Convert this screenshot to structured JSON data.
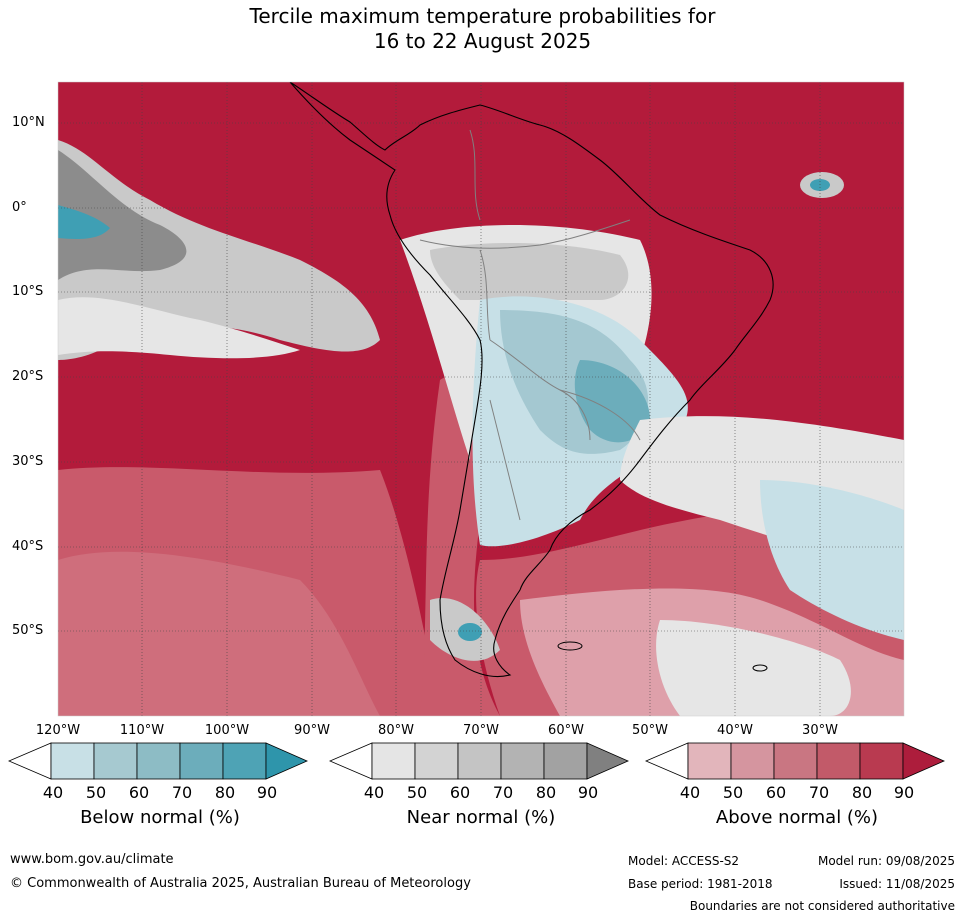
{
  "title": {
    "line1": "Tercile maximum temperature probabilities for",
    "line2": "16 to 22 August 2025"
  },
  "map": {
    "lat_labels": [
      "10°N",
      "0°",
      "10°S",
      "20°S",
      "30°S",
      "40°S",
      "50°S"
    ],
    "lon_labels": [
      "120°W",
      "110°W",
      "100°W",
      "90°W",
      "80°W",
      "70°W",
      "60°W",
      "50°W",
      "40°W",
      "30°W"
    ],
    "colors": {
      "above_high": "#b31b3b",
      "above_mid": "#c95a6b",
      "above_low": "#dea0aa",
      "near_low": "#e6e6e6",
      "near_mid": "#c9c9c9",
      "near_high": "#8c8c8c",
      "below_low": "#c7e0e7",
      "below_mid": "#a4c8d1",
      "below_high": "#3f9fb4",
      "coast": "#000000",
      "border": "#808080"
    }
  },
  "colorbars": [
    {
      "title": "Below normal (%)",
      "ticks": [
        "40",
        "50",
        "60",
        "70",
        "80",
        "90"
      ],
      "colors": [
        "#ffffff",
        "#c8e0e6",
        "#a6c9d0",
        "#8dbcc5",
        "#6cadbb",
        "#4ea3b5",
        "#2e95ab"
      ]
    },
    {
      "title": "Near normal (%)",
      "ticks": [
        "40",
        "50",
        "60",
        "70",
        "80",
        "90"
      ],
      "colors": [
        "#ffffff",
        "#e5e5e5",
        "#d3d3d3",
        "#c4c4c4",
        "#b3b3b3",
        "#a2a2a2",
        "#808080"
      ]
    },
    {
      "title": "Above normal (%)",
      "ticks": [
        "40",
        "50",
        "60",
        "70",
        "80",
        "90"
      ],
      "colors": [
        "#ffffff",
        "#e2b5bb",
        "#d5959f",
        "#c97682",
        "#c25a69",
        "#b93a50",
        "#ad1d3c"
      ]
    }
  ],
  "footer": {
    "website": "www.bom.gov.au/climate",
    "copyright": "© Commonwealth of Australia 2025, Australian Bureau of Meteorology",
    "model": "Model: ACCESS-S2",
    "base_period": "Base period: 1981-2018",
    "model_run": "Model run: 09/08/2025",
    "issued": "Issued: 11/08/2025",
    "disclaimer": "Boundaries are not considered authoritative"
  }
}
